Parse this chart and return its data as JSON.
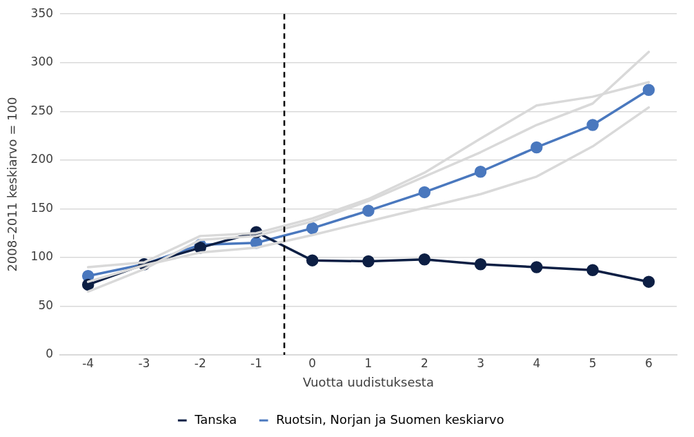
{
  "chart_data": {
    "type": "line",
    "xlabel": "Vuotta uudistuksesta",
    "ylabel": "2008–2011 keskiarvo = 100",
    "x": [
      -4,
      -3,
      -2,
      -1,
      0,
      1,
      2,
      3,
      4,
      5,
      6
    ],
    "xlim": [
      -4.5,
      6.5
    ],
    "xticks": [
      -4,
      -3,
      -2,
      -1,
      0,
      1,
      2,
      3,
      4,
      5,
      6
    ],
    "ylim": [
      0,
      350
    ],
    "yticks": [
      0,
      50,
      100,
      150,
      200,
      250,
      300,
      350
    ],
    "grid": "y",
    "legend": "bottom",
    "marker": "circle",
    "line_style": "solid",
    "ref_lines": [
      {
        "axis": "x",
        "value": -0.5,
        "color": "#000000",
        "line_style": "dashed"
      }
    ],
    "series": [
      {
        "color": "#d9d9d9",
        "marker": "none",
        "values": [
          90,
          95,
          122,
          125,
          140,
          160,
          187,
          222,
          256,
          265,
          280
        ]
      },
      {
        "color": "#d9d9d9",
        "marker": "none",
        "values": [
          65,
          88,
          118,
          122,
          137,
          158,
          183,
          208,
          236,
          258,
          311
        ]
      },
      {
        "color": "#d9d9d9",
        "marker": "none",
        "values": [
          75,
          92,
          105,
          110,
          123,
          137,
          151,
          165,
          183,
          214,
          254
        ]
      },
      {
        "name": "Tanska",
        "color": "#0d1f44",
        "values": [
          72,
          93,
          110,
          126,
          97,
          96,
          98,
          93,
          90,
          87,
          75
        ]
      },
      {
        "name": "Ruotsin, Norjan ja Suomen keskiarvo",
        "color": "#4a78be",
        "values": [
          81,
          93,
          113,
          115,
          130,
          148,
          167,
          188,
          213,
          236,
          272
        ]
      }
    ]
  }
}
